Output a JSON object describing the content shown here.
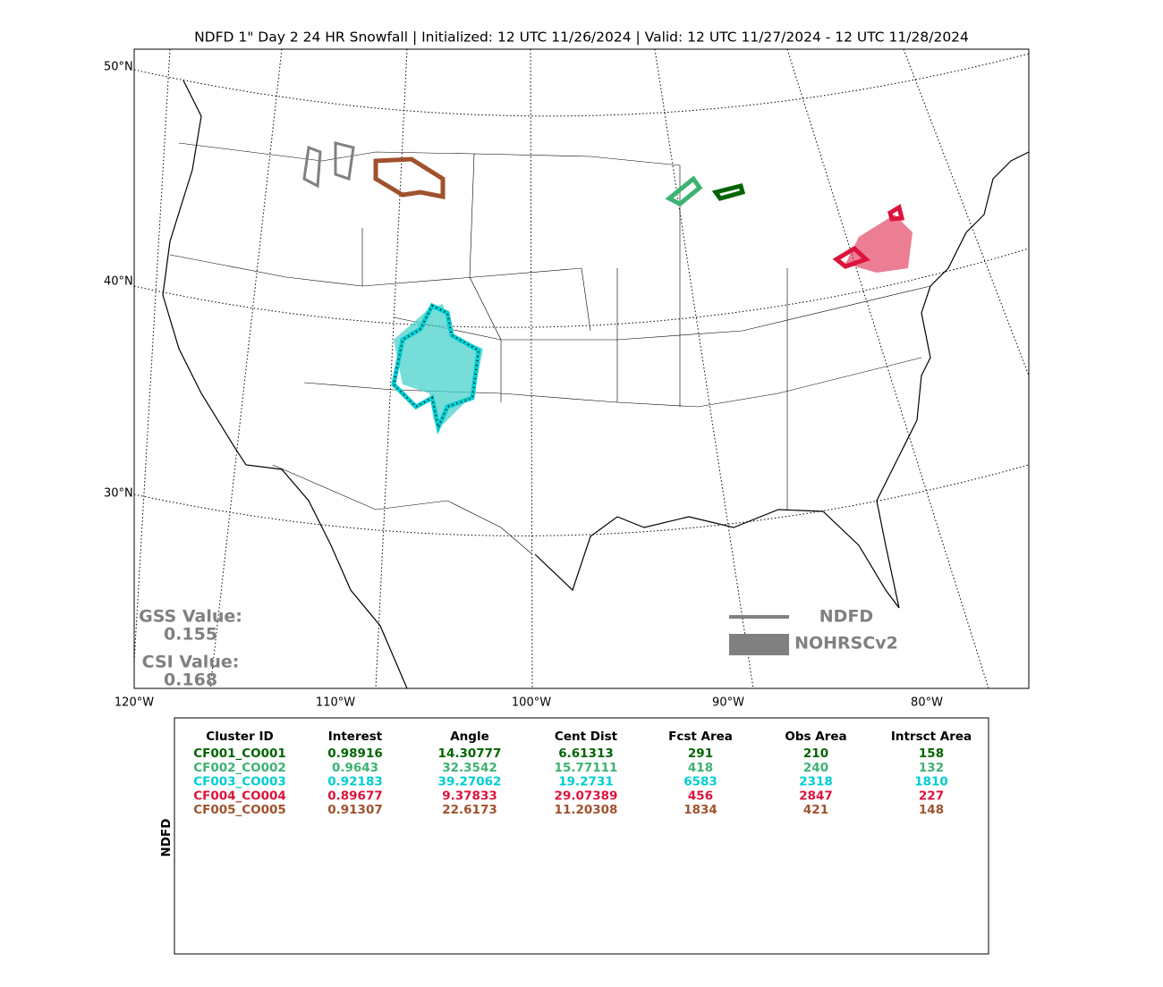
{
  "title": "NDFD 1\" Day 2 24 HR Snowfall | Initialized: 12 UTC 11/26/2024 | Valid: 12 UTC 11/27/2024 - 12 UTC 11/28/2024",
  "map": {
    "lat_labels": [
      "50°N",
      "40°N",
      "30°N"
    ],
    "lon_labels": [
      "120°W",
      "110°W",
      "100°W",
      "90°W",
      "80°W"
    ],
    "gss_label": "GSS Value:",
    "gss_value": "0.155",
    "csi_label": "CSI Value:",
    "csi_value": "0.168",
    "legend": [
      "NDFD",
      "NOHRSCv2"
    ]
  },
  "table": {
    "side_label": "NDFD",
    "headers": [
      "Cluster ID",
      "Interest",
      "Angle",
      "Cent Dist",
      "Fcst Area",
      "Obs Area",
      "Intrsct Area"
    ],
    "rows": [
      {
        "color": "#006400",
        "cells": [
          "CF001_CO001",
          "0.98916",
          "14.30777",
          "6.61313",
          "291",
          "210",
          "158"
        ]
      },
      {
        "color": "#3cb371",
        "cells": [
          "CF002_CO002",
          "0.9643",
          "32.3542",
          "15.77111",
          "418",
          "240",
          "132"
        ]
      },
      {
        "color": "#00ced1",
        "cells": [
          "CF003_CO003",
          "0.92183",
          "39.27062",
          "19.2731",
          "6583",
          "2318",
          "1810"
        ]
      },
      {
        "color": "#dc143c",
        "cells": [
          "CF004_CO004",
          "0.89677",
          "9.37833",
          "29.07389",
          "456",
          "2847",
          "227"
        ]
      },
      {
        "color": "#a0522d",
        "cells": [
          "CF005_CO005",
          "0.91307",
          "22.6173",
          "11.20308",
          "1834",
          "421",
          "148"
        ]
      }
    ]
  }
}
